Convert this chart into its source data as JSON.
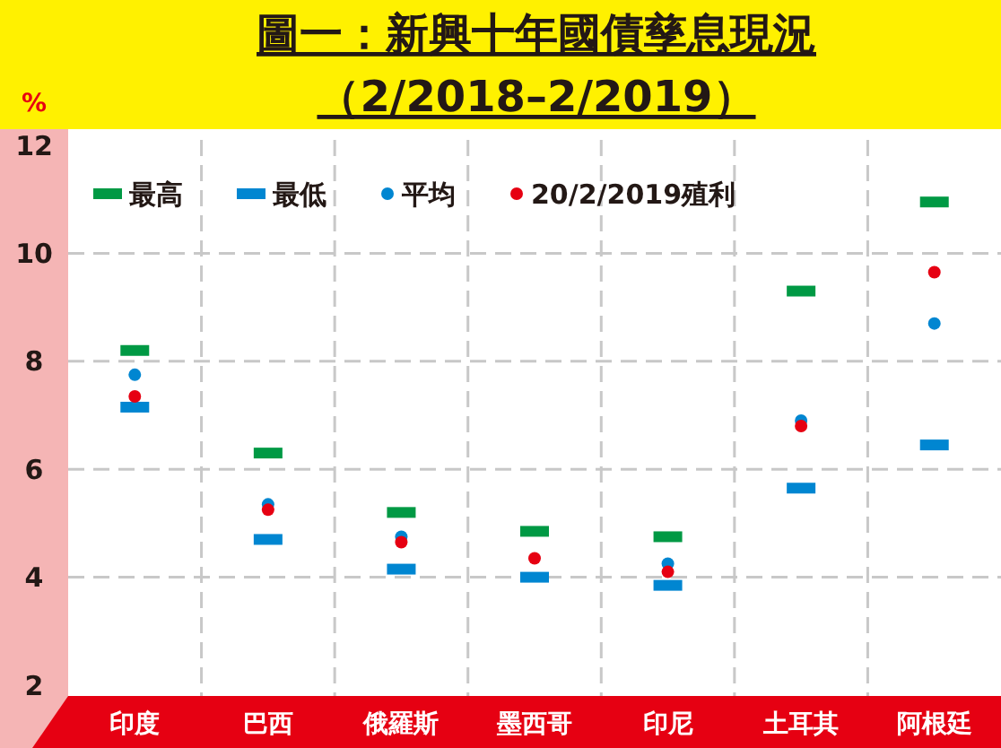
{
  "chart_data": {
    "type": "scatter",
    "title": "圖一：新興十年國債孳息現況",
    "subtitle": "（2/2018–2/2019）",
    "ylabel": "%",
    "categories": [
      "印度",
      "巴西",
      "俄羅斯",
      "墨西哥",
      "印尼",
      "土耳其",
      "阿根廷"
    ],
    "ylim": [
      2,
      12
    ],
    "yticks": [
      2,
      4,
      6,
      8,
      10,
      12
    ],
    "grid": true,
    "legend": "top",
    "series": [
      {
        "name": "最高",
        "color": "#009944",
        "values": [
          8.2,
          6.3,
          5.2,
          4.85,
          4.75,
          9.3,
          10.95
        ]
      },
      {
        "name": "最低",
        "color": "#0086d1",
        "values": [
          7.15,
          4.7,
          4.15,
          4.0,
          3.85,
          5.65,
          6.45
        ]
      },
      {
        "name": "平均",
        "color": "#0086d1",
        "marker": "circle",
        "values": [
          7.75,
          5.35,
          4.75,
          null,
          4.25,
          6.9,
          8.7
        ]
      },
      {
        "name": "20/2/2019殖利",
        "color": "#e60012",
        "marker": "circle",
        "values": [
          7.35,
          5.25,
          4.65,
          4.35,
          4.1,
          6.8,
          9.65
        ]
      }
    ]
  }
}
